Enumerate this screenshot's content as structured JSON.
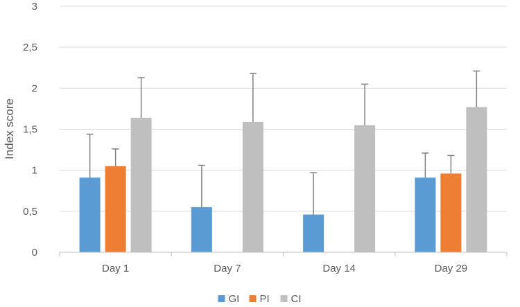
{
  "chart_data": {
    "type": "bar",
    "title": "",
    "xlabel": "",
    "ylabel": "Index score",
    "ylim": [
      0,
      3
    ],
    "y_ticks": [
      "0",
      "0,5",
      "1",
      "1,5",
      "2",
      "2,5",
      "3"
    ],
    "y_tick_values": [
      0,
      0.5,
      1,
      1.5,
      2,
      2.5,
      3
    ],
    "grid": true,
    "legend_position": "bottom",
    "categories": [
      "Day 1",
      "Day 7",
      "Day 14",
      "Day 29"
    ],
    "series": [
      {
        "name": "GI",
        "color": "#5B9BD5",
        "values": [
          0.91,
          0.55,
          0.46,
          0.91
        ],
        "error_plus": [
          0.53,
          0.51,
          0.51,
          0.3
        ]
      },
      {
        "name": "PI",
        "color": "#ED7D31",
        "values": [
          1.05,
          0.0,
          0.0,
          0.96
        ],
        "error_plus": [
          0.21,
          0.0,
          0.0,
          0.22
        ]
      },
      {
        "name": "CI",
        "color": "#BFBFBF",
        "values": [
          1.64,
          1.59,
          1.55,
          1.77
        ],
        "error_plus": [
          0.49,
          0.59,
          0.5,
          0.44
        ]
      }
    ]
  }
}
